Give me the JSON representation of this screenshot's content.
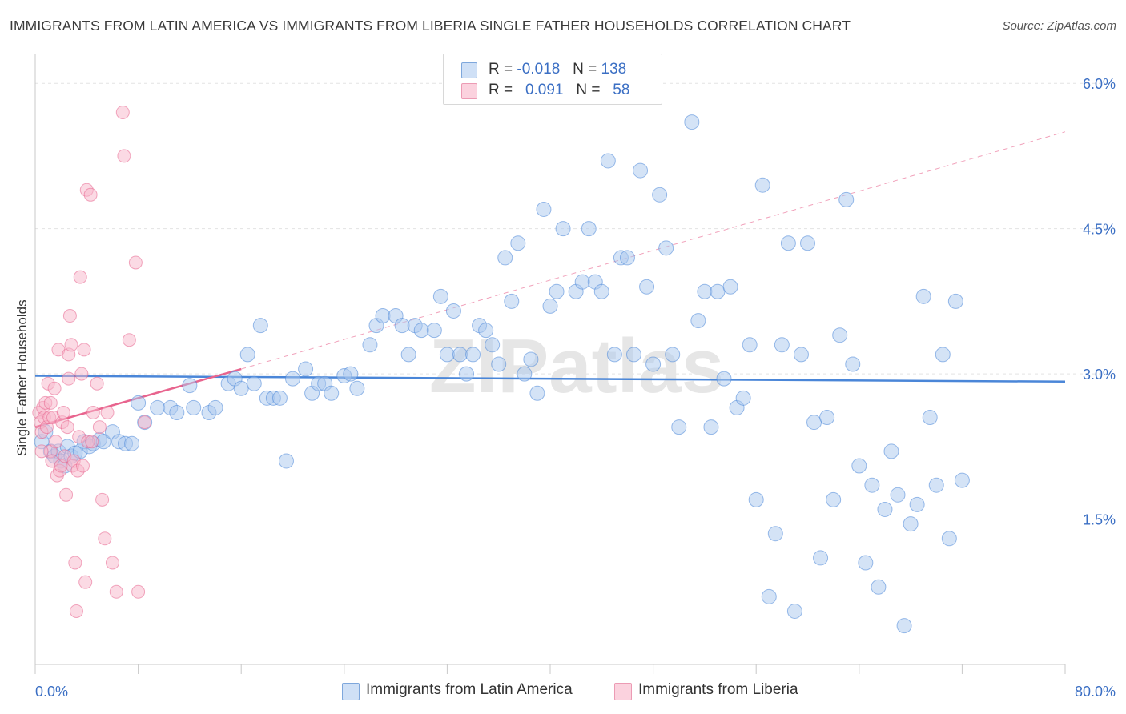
{
  "title": "IMMIGRANTS FROM LATIN AMERICA VS IMMIGRANTS FROM LIBERIA SINGLE FATHER HOUSEHOLDS CORRELATION CHART",
  "source": "Source: ZipAtlas.com",
  "watermark": "ZIPatlas",
  "legend": {
    "r_label": "R =",
    "n_label": "N =",
    "rows": [
      {
        "r": "-0.018",
        "n": "138",
        "color": "#a9c8ee"
      },
      {
        "r": "0.091",
        "n": "58",
        "color": "#f7b6c9"
      }
    ]
  },
  "bottom_legend": [
    {
      "label": "Immigrants from Latin America",
      "color": "#a9c8ee"
    },
    {
      "label": "Immigrants from Liberia",
      "color": "#f7b6c9"
    }
  ],
  "chart_data": {
    "type": "scatter",
    "title": "IMMIGRANTS FROM LATIN AMERICA VS IMMIGRANTS FROM LIBERIA SINGLE FATHER HOUSEHOLDS CORRELATION CHART",
    "xlabel": "",
    "ylabel": "Single Father Households",
    "xlim": [
      0,
      80
    ],
    "ylim": [
      0,
      6.2
    ],
    "x_tick_labels": [
      "0.0%",
      "80.0%"
    ],
    "y_ticks": [
      1.5,
      3.0,
      4.5,
      6.0
    ],
    "y_tick_labels": [
      "1.5%",
      "3.0%",
      "4.5%",
      "6.0%"
    ],
    "grid": true,
    "legend_position": "top-center",
    "series": [
      {
        "name": "Immigrants from Latin America",
        "color": "#4a86d8",
        "fill": "#a9c8ee",
        "r": -0.018,
        "n": 138,
        "trend": {
          "x": [
            0,
            80
          ],
          "y": [
            2.98,
            2.92
          ],
          "style": "solid"
        },
        "points": [
          [
            0.5,
            2.3
          ],
          [
            0.8,
            2.4
          ],
          [
            1.2,
            2.2
          ],
          [
            1.5,
            2.15
          ],
          [
            1.8,
            2.2
          ],
          [
            2.0,
            2.1
          ],
          [
            2.3,
            2.05
          ],
          [
            2.5,
            2.25
          ],
          [
            2.8,
            2.15
          ],
          [
            3.1,
            2.18
          ],
          [
            3.5,
            2.2
          ],
          [
            3.8,
            2.3
          ],
          [
            4.2,
            2.25
          ],
          [
            4.5,
            2.28
          ],
          [
            5.0,
            2.32
          ],
          [
            5.3,
            2.3
          ],
          [
            6.0,
            2.4
          ],
          [
            6.5,
            2.3
          ],
          [
            7.0,
            2.28
          ],
          [
            7.5,
            2.28
          ],
          [
            8.0,
            2.7
          ],
          [
            8.5,
            2.5
          ],
          [
            9.5,
            2.65
          ],
          [
            10.5,
            2.65
          ],
          [
            11.0,
            2.6
          ],
          [
            12.0,
            2.88
          ],
          [
            12.3,
            2.65
          ],
          [
            13.5,
            2.6
          ],
          [
            14.0,
            2.65
          ],
          [
            15.0,
            2.9
          ],
          [
            15.5,
            2.95
          ],
          [
            16.0,
            2.85
          ],
          [
            16.5,
            3.2
          ],
          [
            17.0,
            2.9
          ],
          [
            17.5,
            3.5
          ],
          [
            18.0,
            2.75
          ],
          [
            18.5,
            2.75
          ],
          [
            19.0,
            2.75
          ],
          [
            19.5,
            2.1
          ],
          [
            20.0,
            2.95
          ],
          [
            21.0,
            3.05
          ],
          [
            21.5,
            2.8
          ],
          [
            22.0,
            2.9
          ],
          [
            22.5,
            2.9
          ],
          [
            23.0,
            2.8
          ],
          [
            24.0,
            2.98
          ],
          [
            24.5,
            3.0
          ],
          [
            25.0,
            2.85
          ],
          [
            26.0,
            3.3
          ],
          [
            26.5,
            3.5
          ],
          [
            27.0,
            3.6
          ],
          [
            28.0,
            3.6
          ],
          [
            28.5,
            3.5
          ],
          [
            29.0,
            3.2
          ],
          [
            29.5,
            3.5
          ],
          [
            30.0,
            3.45
          ],
          [
            31.0,
            3.45
          ],
          [
            31.5,
            3.8
          ],
          [
            32.0,
            3.2
          ],
          [
            32.5,
            3.65
          ],
          [
            33.0,
            3.2
          ],
          [
            33.5,
            3.0
          ],
          [
            34.0,
            3.2
          ],
          [
            34.5,
            3.5
          ],
          [
            35.0,
            3.45
          ],
          [
            35.5,
            3.3
          ],
          [
            36.0,
            3.1
          ],
          [
            36.5,
            4.2
          ],
          [
            37.0,
            3.75
          ],
          [
            37.5,
            4.35
          ],
          [
            38.0,
            3.0
          ],
          [
            38.5,
            3.15
          ],
          [
            39.0,
            2.8
          ],
          [
            39.5,
            4.7
          ],
          [
            40.0,
            3.7
          ],
          [
            40.5,
            3.85
          ],
          [
            41.0,
            4.5
          ],
          [
            42.0,
            3.85
          ],
          [
            42.5,
            3.95
          ],
          [
            43.0,
            4.5
          ],
          [
            43.5,
            3.95
          ],
          [
            44.0,
            3.85
          ],
          [
            44.5,
            5.2
          ],
          [
            45.0,
            3.2
          ],
          [
            45.5,
            4.2
          ],
          [
            46.0,
            4.2
          ],
          [
            46.5,
            3.2
          ],
          [
            47.0,
            5.1
          ],
          [
            47.5,
            3.9
          ],
          [
            48.0,
            3.1
          ],
          [
            48.5,
            4.85
          ],
          [
            49.0,
            4.3
          ],
          [
            49.5,
            3.2
          ],
          [
            50.0,
            2.45
          ],
          [
            51.0,
            5.6
          ],
          [
            51.5,
            3.55
          ],
          [
            52.0,
            3.85
          ],
          [
            52.5,
            2.45
          ],
          [
            53.0,
            3.85
          ],
          [
            53.5,
            2.95
          ],
          [
            54.0,
            3.9
          ],
          [
            54.5,
            2.65
          ],
          [
            55.0,
            2.75
          ],
          [
            55.5,
            3.3
          ],
          [
            56.0,
            1.7
          ],
          [
            56.5,
            4.95
          ],
          [
            57.0,
            0.7
          ],
          [
            57.5,
            1.35
          ],
          [
            58.0,
            3.3
          ],
          [
            58.5,
            4.35
          ],
          [
            59.0,
            0.55
          ],
          [
            59.5,
            3.2
          ],
          [
            60.0,
            4.35
          ],
          [
            60.5,
            2.5
          ],
          [
            61.0,
            1.1
          ],
          [
            61.5,
            2.55
          ],
          [
            62.0,
            1.7
          ],
          [
            62.5,
            3.4
          ],
          [
            63.0,
            4.8
          ],
          [
            63.5,
            3.1
          ],
          [
            64.0,
            2.05
          ],
          [
            64.5,
            1.05
          ],
          [
            65.0,
            1.85
          ],
          [
            65.5,
            0.8
          ],
          [
            66.0,
            1.6
          ],
          [
            66.5,
            2.2
          ],
          [
            67.0,
            1.75
          ],
          [
            67.5,
            0.4
          ],
          [
            68.0,
            1.45
          ],
          [
            68.5,
            1.65
          ],
          [
            69.0,
            3.8
          ],
          [
            69.5,
            2.55
          ],
          [
            70.0,
            1.85
          ],
          [
            70.5,
            3.2
          ],
          [
            71.0,
            1.3
          ],
          [
            71.5,
            3.75
          ],
          [
            72.0,
            1.9
          ]
        ]
      },
      {
        "name": "Immigrants from Liberia",
        "color": "#e8648e",
        "fill": "#f7b6c9",
        "r": 0.091,
        "n": 58,
        "trend": {
          "x": [
            0,
            16.0
          ],
          "y": [
            2.45,
            3.05
          ],
          "style": "solid"
        },
        "trend_extension": {
          "x": [
            16.0,
            80
          ],
          "y": [
            3.05,
            5.5
          ],
          "style": "dashed"
        },
        "points": [
          [
            0.3,
            2.6
          ],
          [
            0.4,
            2.5
          ],
          [
            0.5,
            2.4
          ],
          [
            0.6,
            2.65
          ],
          [
            0.7,
            2.55
          ],
          [
            0.8,
            2.7
          ],
          [
            0.9,
            2.45
          ],
          [
            1.0,
            2.9
          ],
          [
            1.1,
            2.55
          ],
          [
            1.2,
            2.2
          ],
          [
            1.3,
            2.1
          ],
          [
            1.4,
            2.55
          ],
          [
            1.5,
            2.85
          ],
          [
            1.6,
            2.3
          ],
          [
            1.7,
            1.95
          ],
          [
            1.8,
            3.25
          ],
          [
            1.9,
            2.0
          ],
          [
            2.0,
            2.05
          ],
          [
            2.1,
            2.5
          ],
          [
            2.2,
            2.6
          ],
          [
            2.3,
            2.15
          ],
          [
            2.4,
            1.75
          ],
          [
            2.5,
            2.45
          ],
          [
            2.6,
            3.2
          ],
          [
            2.7,
            3.6
          ],
          [
            2.8,
            3.3
          ],
          [
            2.9,
            2.05
          ],
          [
            3.0,
            2.1
          ],
          [
            3.1,
            1.05
          ],
          [
            3.2,
            0.55
          ],
          [
            3.3,
            2.0
          ],
          [
            3.4,
            2.35
          ],
          [
            3.5,
            4.0
          ],
          [
            3.6,
            3.0
          ],
          [
            3.8,
            3.25
          ],
          [
            3.9,
            0.85
          ],
          [
            4.0,
            4.9
          ],
          [
            4.1,
            2.3
          ],
          [
            4.3,
            4.85
          ],
          [
            4.5,
            2.6
          ],
          [
            4.8,
            2.9
          ],
          [
            5.0,
            2.45
          ],
          [
            5.2,
            1.7
          ],
          [
            5.4,
            1.3
          ],
          [
            5.6,
            2.6
          ],
          [
            6.0,
            1.05
          ],
          [
            6.3,
            0.75
          ],
          [
            6.8,
            5.7
          ],
          [
            6.9,
            5.25
          ],
          [
            7.3,
            3.35
          ],
          [
            7.8,
            4.15
          ],
          [
            8.0,
            0.75
          ],
          [
            8.5,
            2.5
          ],
          [
            1.2,
            2.7
          ],
          [
            2.6,
            2.95
          ],
          [
            3.7,
            2.05
          ],
          [
            4.4,
            2.3
          ],
          [
            0.5,
            2.2
          ]
        ]
      }
    ]
  }
}
